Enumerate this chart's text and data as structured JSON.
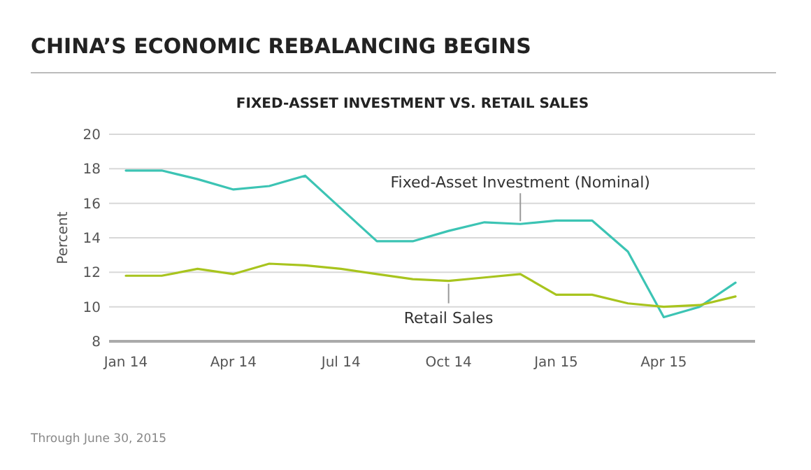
{
  "chart_data": {
    "type": "line",
    "title": "CHINA’S ECONOMIC REBALANCING BEGINS",
    "subtitle": "FIXED-ASSET INVESTMENT VS. RETAIL SALES",
    "ylabel": "Percent",
    "categories": [
      "Jan 14",
      null,
      null,
      "Apr 14",
      null,
      null,
      "Jul 14",
      null,
      null,
      "Oct 14",
      null,
      null,
      "Jan 15",
      null,
      null,
      "Apr 15",
      null,
      null
    ],
    "series": [
      {
        "name": "Fixed-Asset Investment (Nominal)",
        "color": "#3cc4b4",
        "values": [
          17.9,
          17.9,
          17.4,
          16.8,
          17.0,
          17.6,
          15.7,
          13.8,
          13.8,
          14.4,
          14.9,
          14.8,
          15.0,
          15.0,
          13.2,
          9.4,
          10.0,
          11.4
        ]
      },
      {
        "name": "Retail Sales",
        "color": "#a8c41e",
        "values": [
          11.8,
          11.8,
          12.2,
          11.9,
          12.5,
          12.4,
          12.2,
          11.9,
          11.6,
          11.5,
          11.7,
          11.9,
          10.7,
          10.7,
          10.2,
          10.0,
          10.1,
          10.6
        ]
      }
    ],
    "ylim": [
      8,
      20
    ],
    "yticks": [
      8,
      10,
      12,
      14,
      16,
      18,
      20
    ],
    "grid": "y",
    "legend": false,
    "annotations": [
      "Through June 30, 2015"
    ]
  }
}
